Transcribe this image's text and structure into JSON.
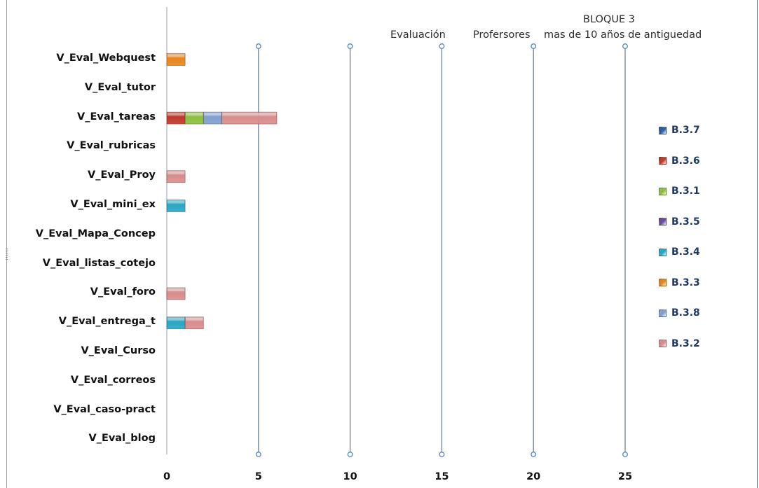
{
  "chart_data": {
    "type": "bar",
    "orientation": "horizontal",
    "stacked": true,
    "title_lines": [
      "BLOQUE 3",
      "Evaluación",
      "Profersores",
      "mas de 10 años de antiguedad"
    ],
    "categories": [
      "V_Eval_Webquest",
      "V_Eval_tutor",
      "V_Eval_tareas",
      "V_Eval_rubricas",
      "V_Eval_Proy",
      "V_Eval_mini_ex",
      "V_Eval_Mapa_Concep",
      "V_Eval_listas_cotejo",
      "V_Eval_foro",
      "V_Eval_entrega_t",
      "V_Eval_Curso",
      "V_Eval_correos",
      "V_Eval_caso-pract",
      "V_Eval_blog"
    ],
    "series": [
      {
        "name": "B.3.7",
        "color": "#2f5fa3",
        "values": [
          0,
          0,
          0,
          0,
          0,
          0,
          0,
          0,
          0,
          0,
          0,
          0,
          0,
          0
        ]
      },
      {
        "name": "B.3.6",
        "color": "#c0392b",
        "values": [
          0,
          0,
          1,
          0,
          0,
          0,
          0,
          0,
          0,
          0,
          0,
          0,
          0,
          0
        ]
      },
      {
        "name": "B.3.1",
        "color": "#8cbf3f",
        "values": [
          0,
          0,
          1,
          0,
          0,
          0,
          0,
          0,
          0,
          0,
          0,
          0,
          0,
          0
        ]
      },
      {
        "name": "B.3.5",
        "color": "#6a4c9c",
        "values": [
          0,
          0,
          0,
          0,
          0,
          0,
          0,
          0,
          0,
          0,
          0,
          0,
          0,
          0
        ]
      },
      {
        "name": "B.3.4",
        "color": "#2aa6c4",
        "values": [
          0,
          0,
          0,
          0,
          0,
          1,
          0,
          0,
          0,
          1,
          0,
          0,
          0,
          0
        ]
      },
      {
        "name": "B.3.3",
        "color": "#e8861e",
        "values": [
          1,
          0,
          0,
          0,
          0,
          0,
          0,
          0,
          0,
          0,
          0,
          0,
          0,
          0
        ]
      },
      {
        "name": "B.3.8",
        "color": "#7f9fd0",
        "values": [
          0,
          0,
          1,
          0,
          0,
          0,
          0,
          0,
          0,
          0,
          0,
          0,
          0,
          0
        ]
      },
      {
        "name": "B.3.2",
        "color": "#d98c8c",
        "values": [
          0,
          0,
          3,
          0,
          1,
          0,
          0,
          0,
          1,
          1,
          0,
          0,
          0,
          0
        ]
      }
    ],
    "xlim": [
      0,
      25
    ],
    "xticks": [
      "0",
      "5",
      "10",
      "15",
      "20",
      "25"
    ],
    "grid": true,
    "legend_position": "right"
  }
}
